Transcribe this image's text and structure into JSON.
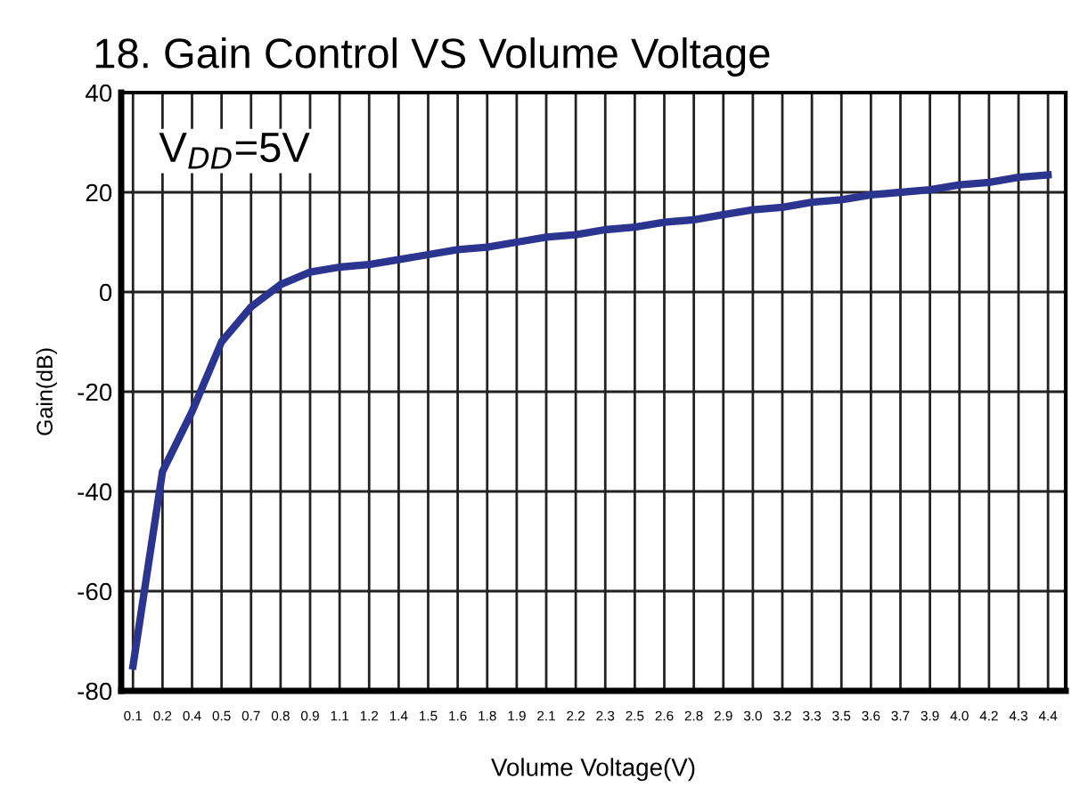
{
  "chart_data": {
    "type": "line",
    "title": "18. Gain Control VS Volume Voltage",
    "xlabel": "Volume Voltage(V)",
    "ylabel": "Gain(dB)",
    "annotations": [
      "V$_{DD}$=5V"
    ],
    "categories": [
      "0.1",
      "0.2",
      "0.4",
      "0.5",
      "0.7",
      "0.8",
      "0.9",
      "1.1",
      "1.2",
      "1.4",
      "1.5",
      "1.6",
      "1.8",
      "1.9",
      "2.1",
      "2.2",
      "2.3",
      "2.5",
      "2.6",
      "2.8",
      "2.9",
      "3.0",
      "3.2",
      "3.3",
      "3.5",
      "3.6",
      "3.7",
      "3.9",
      "4.0",
      "4.2",
      "4.3",
      "4.4"
    ],
    "series": [
      {
        "color": "#2b3590",
        "values": [
          -75,
          -36,
          -24,
          -10,
          -3,
          1.5,
          4,
          5,
          5.5,
          6.5,
          7.5,
          8.5,
          9,
          10,
          11,
          11.5,
          12.5,
          13,
          14,
          14.5,
          15.5,
          16.5,
          17,
          18,
          18.5,
          19.5,
          20,
          20.5,
          21.5,
          22,
          23,
          23.5
        ]
      }
    ],
    "ylim": [
      -80,
      40
    ],
    "yticks": [
      -80,
      -60,
      -40,
      -20,
      0,
      20,
      40
    ],
    "grid": true,
    "legend": false,
    "marker": "none",
    "line_style": "solid"
  }
}
